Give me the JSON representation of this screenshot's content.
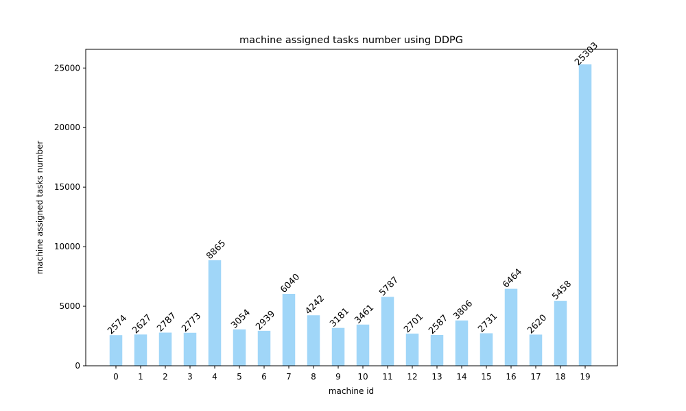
{
  "chart_data": {
    "type": "bar",
    "title": "machine assigned tasks number using DDPG",
    "xlabel": "machine id",
    "ylabel": "machine assigned tasks number",
    "categories": [
      "0",
      "1",
      "2",
      "3",
      "4",
      "5",
      "6",
      "7",
      "8",
      "9",
      "10",
      "11",
      "12",
      "13",
      "14",
      "15",
      "16",
      "17",
      "18",
      "19"
    ],
    "values": [
      2574,
      2627,
      2787,
      2773,
      8865,
      3054,
      2939,
      6040,
      4242,
      3181,
      3461,
      5787,
      2701,
      2587,
      3806,
      2731,
      6464,
      2620,
      5458,
      25303
    ],
    "data_labels": [
      "2574",
      "2627",
      "2787",
      "2773",
      "8865",
      "3054",
      "2939",
      "6040",
      "4242",
      "3181",
      "3461",
      "5787",
      "2701",
      "2587",
      "3806",
      "2731",
      "6464",
      "2620",
      "5458",
      "25303"
    ],
    "ylim": [
      0,
      26568
    ],
    "yticks": [
      0,
      5000,
      10000,
      15000,
      20000,
      25000
    ],
    "ytick_labels": [
      "0",
      "5000",
      "10000",
      "15000",
      "20000",
      "25000"
    ],
    "grid": false,
    "bar_color": "#a0d6f8"
  }
}
